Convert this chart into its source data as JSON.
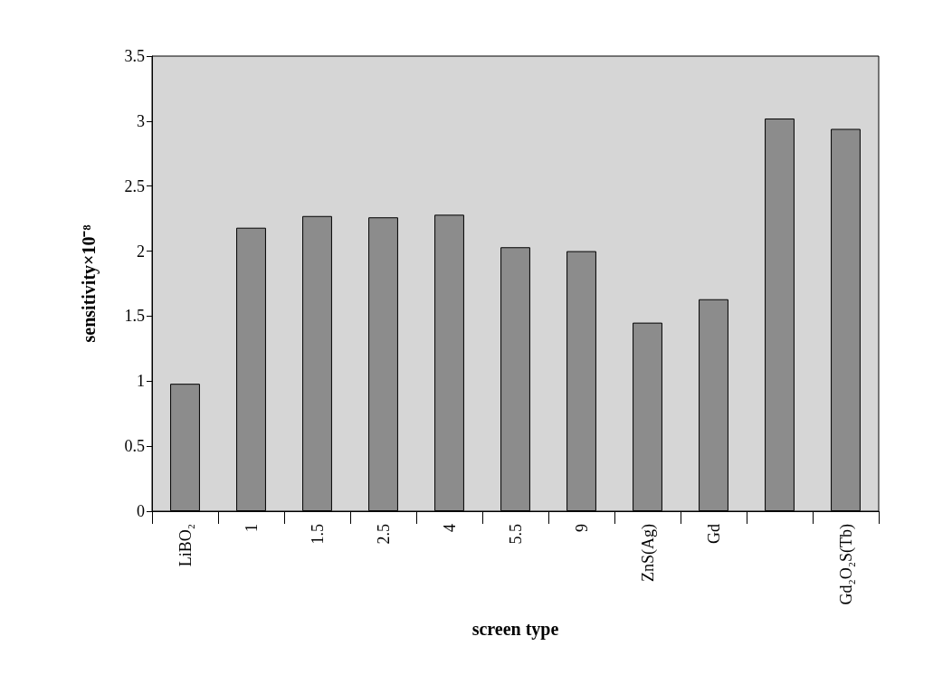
{
  "chart_data": {
    "type": "bar",
    "xlabel": "screen type",
    "ylabel": "sensitivity×10⁻⁸",
    "categories": [
      "LiBO₂",
      "1",
      "1.5",
      "2.5",
      "4",
      "5.5",
      "9",
      "ZnS(Ag)",
      "Gd",
      null,
      "Gd₂O₂S(Tb)"
    ],
    "values": [
      0.98,
      2.18,
      2.27,
      2.26,
      2.28,
      2.03,
      2.0,
      1.45,
      1.63,
      3.02,
      2.94
    ],
    "color": "#8c8c8c",
    "ylim": [
      0,
      3.5
    ],
    "yticks": [
      0,
      0.5,
      1,
      1.5,
      2,
      2.5,
      3,
      3.5
    ],
    "grid": false
  }
}
